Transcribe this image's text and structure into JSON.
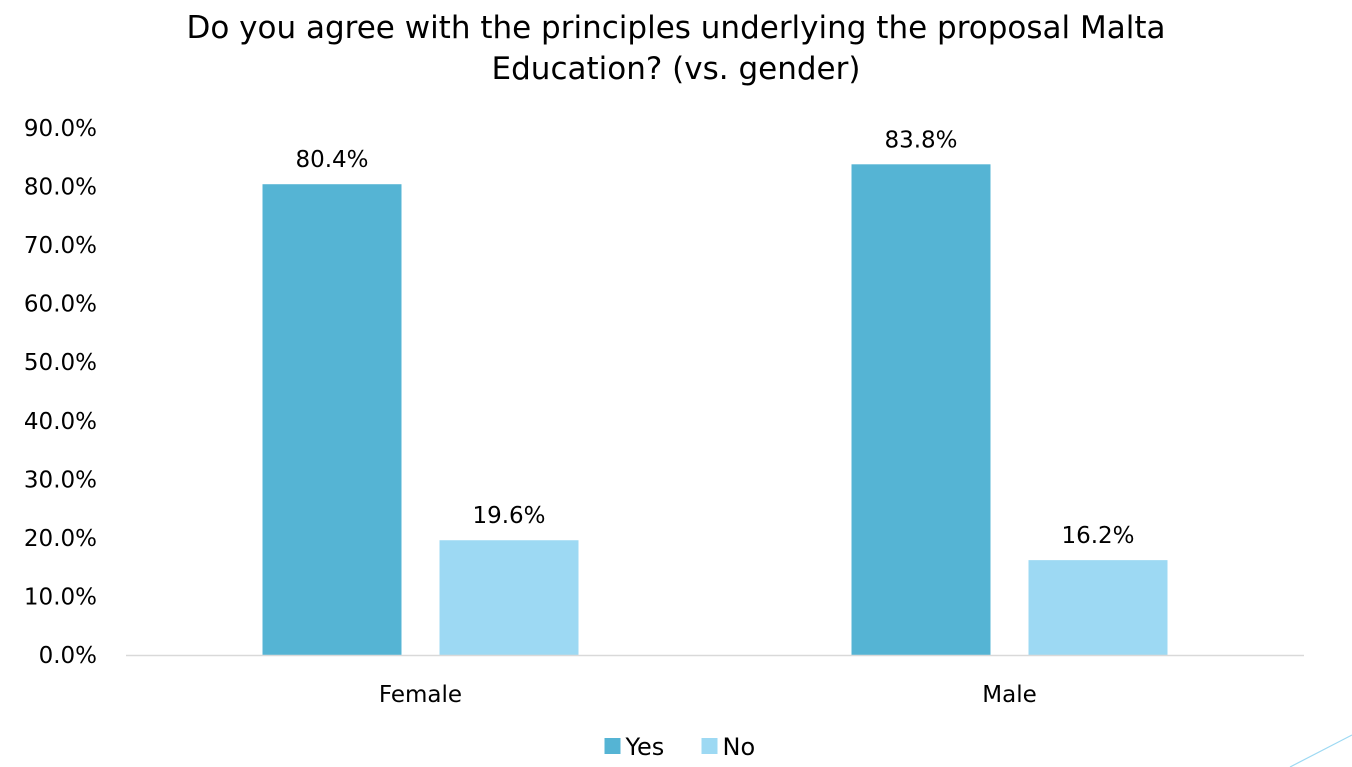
{
  "chart_data": {
    "type": "bar",
    "title_lines": [
      "Do you agree with the principles underlying the proposal Malta",
      "Education? (vs. gender)"
    ],
    "categories": [
      "Female",
      "Male"
    ],
    "series": [
      {
        "name": "Yes",
        "values": [
          80.4,
          83.8
        ],
        "labels": [
          "80.4%",
          "83.8%"
        ],
        "color": "#55b4d4"
      },
      {
        "name": "No",
        "values": [
          19.6,
          16.2
        ],
        "labels": [
          "19.6%",
          "16.2%"
        ],
        "color": "#9dd9f3"
      }
    ],
    "y_ticks": [
      "0.0%",
      "10.0%",
      "20.0%",
      "30.0%",
      "40.0%",
      "50.0%",
      "60.0%",
      "70.0%",
      "80.0%",
      "90.0%"
    ],
    "ylim": [
      0,
      90
    ],
    "grid": false,
    "legend": "bottom",
    "axis_color": "#d9d9d9",
    "decoration_color": "#9dd9f3"
  }
}
